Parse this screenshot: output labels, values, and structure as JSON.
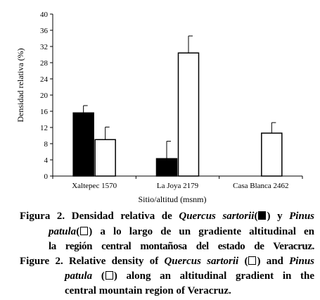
{
  "chart_data": {
    "type": "bar",
    "categories": [
      "Xaltepec 1570",
      "La Joya 2179",
      "Casa Blanca 2462"
    ],
    "series": [
      {
        "values": [
          15.6,
          4.3,
          null
        ],
        "errors": [
          1.8,
          4.3,
          null
        ],
        "color": "#000000"
      },
      {
        "values": [
          9.0,
          30.4,
          10.6
        ],
        "errors": [
          3.1,
          4.2,
          2.6
        ],
        "color": "#ffffff"
      }
    ],
    "ylabel": "Densidad relativa (%)",
    "xlabel": "Sitio/altitud (msnm)",
    "ylim": [
      0,
      40
    ],
    "yticks": [
      0,
      4,
      8,
      12,
      16,
      20,
      24,
      28,
      32,
      36,
      40
    ],
    "grid": false
  },
  "caption": {
    "es": {
      "prefix": "Figura 2. Densidad relativa de ",
      "species1": "Quercus sartorii",
      "mid1": " y ",
      "species2": "Pinus",
      "species2b": "patula",
      "mid2": " a lo largo de un gradiente altitudinal en",
      "line3": "la región central montañosa del estado de Veracruz."
    },
    "en": {
      "prefix": "Figure 2. Relative density of ",
      "species1": "Quercus sartorii",
      "mid1": " and ",
      "species2": "Pinus",
      "species2b": "patula",
      "mid2": " along an altitudinal gradient in the",
      "line3": "central mountain region of Veracruz."
    }
  }
}
